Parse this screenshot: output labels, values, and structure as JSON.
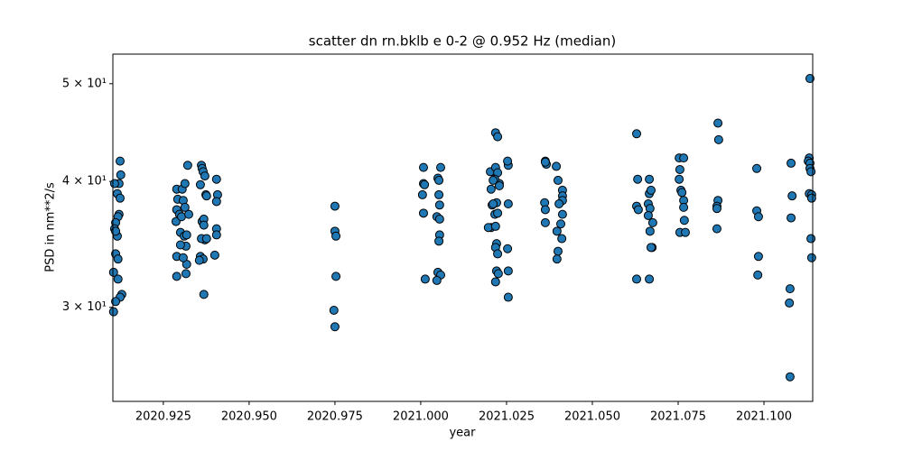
{
  "chart_data": {
    "type": "scatter",
    "title": "scatter dn rn.bklb e 0-2 @ 0.952 Hz (median)",
    "x_label": "year",
    "y_label": "PSD in nm**2/s",
    "color": "#1f77b4",
    "edge_color": "#000000",
    "y_scale": "log",
    "xlim": [
      2020.9103,
      2021.1142
    ],
    "ylim": [
      24.2,
      53.5
    ],
    "xticks": [
      2020.925,
      {
        "value": 2020.95,
        "label": "2020.950"
      },
      2020.975,
      {
        "value": 2021.0,
        "label": "2021.000"
      },
      2021.025,
      {
        "value": 2021.05,
        "label": "2021.050"
      },
      2021.075,
      {
        "value": 2021.1,
        "label": "2021.100"
      }
    ],
    "yticks": [
      {
        "value": 30,
        "label": "3 × 10¹"
      },
      {
        "value": 40,
        "label": "4 × 10¹"
      },
      {
        "value": 50,
        "label": "5 × 10¹"
      }
    ],
    "x": [
      2020.9124,
      2020.9126,
      2020.9121,
      2020.9116,
      2020.9124,
      2020.9121,
      2020.9118,
      2020.9111,
      2020.9108,
      2020.9116,
      2020.9111,
      2020.9111,
      2020.9118,
      2020.9105,
      2020.9118,
      2020.9129,
      2020.9124,
      2020.9111,
      2020.9105,
      2020.9108,
      2020.9289,
      2020.9292,
      2020.9289,
      2020.9287,
      2020.9289,
      2020.9289,
      2020.9297,
      2020.93,
      2020.9303,
      2020.9305,
      2020.9308,
      2020.9313,
      2020.9311,
      2020.9316,
      2020.9318,
      2020.9316,
      2020.9321,
      2020.9308,
      2020.9324,
      2020.9318,
      2020.9313,
      2020.93,
      2020.9358,
      2020.9361,
      2020.9363,
      2020.9366,
      2020.9371,
      2020.9374,
      2020.9363,
      2020.9368,
      2020.9371,
      2020.9361,
      2020.9368,
      2020.9376,
      2020.9358,
      2020.9366,
      2020.9368,
      2020.9376,
      2020.9405,
      2020.9408,
      2020.9405,
      2020.9405,
      2020.9405,
      2020.94,
      2020.9355,
      2020.975,
      2020.975,
      2020.9753,
      2020.9753,
      2020.9747,
      2020.975,
      2021.0008,
      2021.0008,
      2021.0011,
      2021.0005,
      2021.0008,
      2021.0013,
      2021.005,
      2021.0053,
      2021.0058,
      2021.0053,
      2021.0055,
      2021.0047,
      2021.0055,
      2021.0055,
      2021.0053,
      2021.005,
      2021.0058,
      2021.0047,
      2021.0218,
      2021.0224,
      2021.0203,
      2021.0218,
      2021.0224,
      2021.0229,
      2021.0216,
      2021.0205,
      2021.0211,
      2021.0229,
      2021.0221,
      2021.0208,
      2021.0216,
      2021.0211,
      2021.0205,
      2021.0197,
      2021.0224,
      2021.0218,
      2021.0221,
      2021.0218,
      2021.0224,
      2021.0221,
      2021.0226,
      2021.0218,
      2021.0255,
      2021.0253,
      2021.0255,
      2021.0253,
      2021.0255,
      2021.0255,
      2021.0363,
      2021.0366,
      2021.0363,
      2021.0361,
      2021.0363,
      2021.0363,
      2021.0395,
      2021.04,
      2021.0413,
      2021.0413,
      2021.0413,
      2021.0403,
      2021.0397,
      2021.0413,
      2021.0408,
      2021.0411,
      2021.04,
      2021.0397,
      2021.0629,
      2021.0632,
      2021.0629,
      2021.0634,
      2021.0629,
      2021.0666,
      2021.0666,
      2021.0671,
      2021.0663,
      2021.0668,
      2021.0663,
      2021.0676,
      2021.0668,
      2021.0674,
      2021.0671,
      2021.0666,
      2021.0753,
      2021.0766,
      2021.0755,
      2021.0753,
      2021.0758,
      2021.0761,
      2021.0766,
      2021.0766,
      2021.0768,
      2021.0755,
      2021.0771,
      2021.0866,
      2021.0868,
      2021.0866,
      2021.0863,
      2021.0863,
      2021.0863,
      2021.0979,
      2021.0979,
      2021.0984,
      2021.0984,
      2021.0982,
      2021.1079,
      2021.1082,
      2021.1079,
      2021.1076,
      2021.1074,
      2021.1076,
      2021.1132,
      2021.1129,
      2021.1134,
      2021.1134,
      2021.1137,
      2021.1132,
      2021.1139,
      2021.1139,
      2021.1137,
      2021.1139,
      2021.1134
    ],
    "values": [
      41.9,
      40.6,
      39.8,
      38.9,
      38.5,
      37.1,
      36.9,
      36.4,
      35.9,
      35.3,
      35.7,
      33.9,
      33.5,
      32.5,
      32.0,
      30.9,
      30.7,
      30.4,
      29.7,
      39.8,
      39.3,
      38.4,
      37.5,
      36.5,
      33.7,
      32.2,
      37.1,
      35.6,
      36.9,
      39.3,
      38.3,
      39.8,
      35.3,
      34.5,
      33.1,
      32.4,
      41.5,
      33.6,
      37.1,
      35.4,
      37.7,
      34.6,
      39.7,
      41.5,
      41.2,
      40.9,
      40.5,
      38.8,
      36.5,
      36.7,
      35.0,
      35.1,
      36.2,
      35.1,
      33.7,
      33.5,
      30.9,
      38.7,
      40.2,
      38.8,
      38.2,
      35.9,
      35.4,
      33.8,
      33.4,
      37.8,
      35.7,
      35.3,
      32.2,
      29.8,
      28.7,
      41.3,
      39.8,
      39.7,
      38.8,
      37.2,
      32.0,
      40.3,
      40.1,
      41.3,
      38.8,
      37.9,
      36.9,
      36.7,
      35.4,
      34.9,
      32.5,
      32.3,
      31.9,
      44.7,
      44.3,
      40.9,
      41.3,
      40.8,
      39.8,
      40.2,
      39.3,
      40.1,
      39.6,
      38.1,
      37.9,
      37.1,
      38.0,
      36.0,
      36.0,
      37.2,
      36.1,
      34.7,
      34.4,
      33.9,
      32.6,
      32.4,
      31.8,
      41.5,
      41.9,
      38.0,
      34.3,
      32.6,
      30.7,
      41.9,
      41.6,
      41.8,
      38.1,
      37.5,
      36.4,
      41.4,
      40.1,
      39.2,
      38.7,
      38.3,
      38.0,
      35.7,
      37.1,
      36.3,
      35.1,
      34.1,
      33.5,
      44.6,
      40.2,
      37.8,
      37.5,
      32.0,
      40.2,
      38.9,
      39.2,
      38.0,
      37.6,
      37.0,
      36.4,
      35.7,
      34.4,
      34.4,
      32.0,
      42.2,
      42.2,
      41.1,
      40.2,
      39.2,
      39.0,
      38.3,
      37.7,
      36.6,
      35.6,
      35.6,
      45.7,
      44.0,
      38.3,
      37.8,
      37.6,
      35.9,
      41.2,
      37.4,
      36.9,
      33.7,
      32.3,
      41.7,
      38.7,
      36.8,
      31.3,
      30.3,
      25.6,
      42.2,
      41.9,
      41.7,
      41.2,
      40.9,
      38.9,
      38.8,
      38.5,
      35.1,
      33.6,
      50.6
    ]
  }
}
